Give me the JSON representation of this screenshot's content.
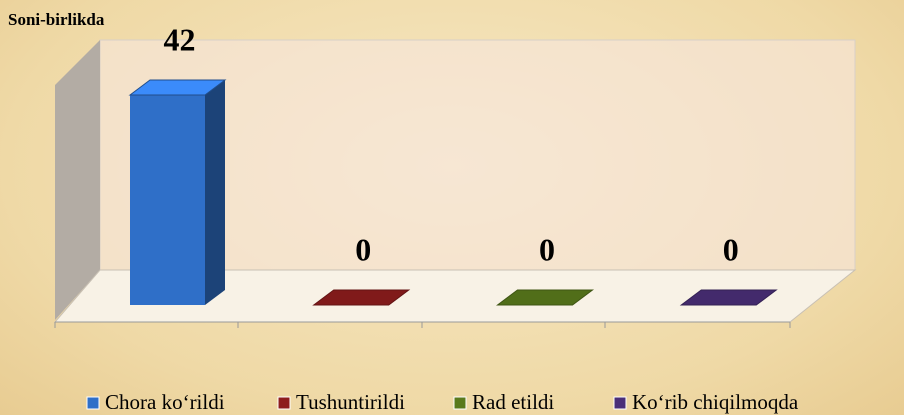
{
  "chart_data": {
    "type": "bar",
    "y_label": "Soni-birlikda",
    "series": [
      {
        "name": "Chora ko‘rildi",
        "color": "#2f6fc8",
        "values": [
          42
        ]
      },
      {
        "name": "Tushuntirildi",
        "color": "#8e1d1d",
        "values": [
          0
        ]
      },
      {
        "name": "Rad etildi",
        "color": "#5a7a1c",
        "values": [
          0
        ]
      },
      {
        "name": "Ko‘rib chiqilmoqda",
        "color": "#4a2f78",
        "values": [
          0
        ]
      }
    ],
    "ylim": [
      0,
      50
    ]
  }
}
